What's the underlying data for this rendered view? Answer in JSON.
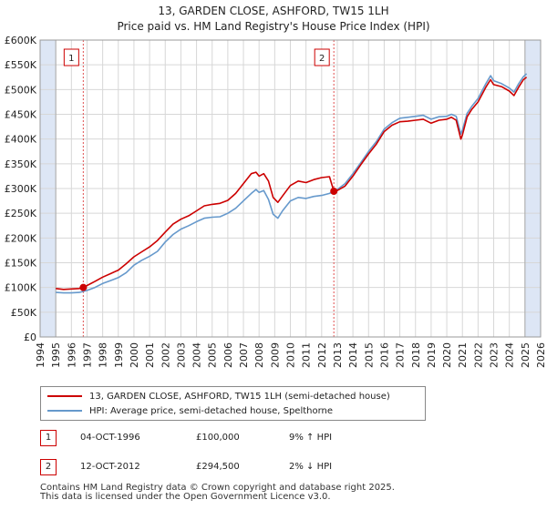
{
  "colors": {
    "property_line": "#cc0000",
    "hpi_line": "#6699cc",
    "marker_line": "#e05050",
    "shade": "#dde6f5",
    "grid": "#d7d7d7"
  },
  "chart_data": {
    "type": "line",
    "title": "13, GARDEN CLOSE, ASHFORD, TW15 1LH",
    "subtitle": "Price paid vs. HM Land Registry's House Price Index (HPI)",
    "xlim": [
      1994,
      2026
    ],
    "ylim": [
      0,
      600000
    ],
    "x_ticks": [
      "1994",
      "1995",
      "1996",
      "1997",
      "1998",
      "1999",
      "2000",
      "2001",
      "2002",
      "2003",
      "2004",
      "2005",
      "2006",
      "2007",
      "2008",
      "2009",
      "2010",
      "2011",
      "2012",
      "2013",
      "2014",
      "2015",
      "2016",
      "2017",
      "2018",
      "2019",
      "2020",
      "2021",
      "2022",
      "2023",
      "2024",
      "2025",
      "2026"
    ],
    "y_ticks": [
      {
        "value": 0,
        "label": "£0"
      },
      {
        "value": 50000,
        "label": "£50K"
      },
      {
        "value": 100000,
        "label": "£100K"
      },
      {
        "value": 150000,
        "label": "£150K"
      },
      {
        "value": 200000,
        "label": "£200K"
      },
      {
        "value": 250000,
        "label": "£250K"
      },
      {
        "value": 300000,
        "label": "£300K"
      },
      {
        "value": 350000,
        "label": "£350K"
      },
      {
        "value": 400000,
        "label": "£400K"
      },
      {
        "value": 450000,
        "label": "£450K"
      },
      {
        "value": 500000,
        "label": "£500K"
      },
      {
        "value": 550000,
        "label": "£550K"
      },
      {
        "value": 600000,
        "label": "£600K"
      }
    ],
    "shaded_regions": [
      [
        1994,
        1995
      ],
      [
        2025,
        2026
      ]
    ],
    "series": [
      {
        "name": "13, GARDEN CLOSE, ASHFORD, TW15 1LH (semi-detached house)",
        "color": "#cc0000",
        "points": [
          [
            1995.0,
            98000
          ],
          [
            1995.5,
            96000
          ],
          [
            1996.0,
            97000
          ],
          [
            1996.5,
            98000
          ],
          [
            1996.76,
            100000
          ],
          [
            1997.0,
            104000
          ],
          [
            1997.5,
            112000
          ],
          [
            1998.0,
            121000
          ],
          [
            1998.5,
            128000
          ],
          [
            1999.0,
            135000
          ],
          [
            1999.5,
            148000
          ],
          [
            2000.0,
            162000
          ],
          [
            2000.5,
            172000
          ],
          [
            2001.0,
            182000
          ],
          [
            2001.5,
            195000
          ],
          [
            2002.0,
            212000
          ],
          [
            2002.5,
            228000
          ],
          [
            2003.0,
            238000
          ],
          [
            2003.5,
            245000
          ],
          [
            2004.0,
            255000
          ],
          [
            2004.5,
            265000
          ],
          [
            2005.0,
            268000
          ],
          [
            2005.5,
            270000
          ],
          [
            2006.0,
            276000
          ],
          [
            2006.5,
            290000
          ],
          [
            2007.0,
            310000
          ],
          [
            2007.5,
            330000
          ],
          [
            2007.8,
            333000
          ],
          [
            2008.0,
            325000
          ],
          [
            2008.3,
            330000
          ],
          [
            2008.6,
            315000
          ],
          [
            2008.9,
            282000
          ],
          [
            2009.2,
            272000
          ],
          [
            2009.5,
            285000
          ],
          [
            2010.0,
            306000
          ],
          [
            2010.5,
            315000
          ],
          [
            2011.0,
            312000
          ],
          [
            2011.5,
            318000
          ],
          [
            2012.0,
            322000
          ],
          [
            2012.5,
            324000
          ],
          [
            2012.78,
            294500
          ],
          [
            2013.0,
            296000
          ],
          [
            2013.5,
            305000
          ],
          [
            2014.0,
            325000
          ],
          [
            2014.5,
            348000
          ],
          [
            2015.0,
            370000
          ],
          [
            2015.5,
            390000
          ],
          [
            2016.0,
            415000
          ],
          [
            2016.5,
            428000
          ],
          [
            2017.0,
            435000
          ],
          [
            2017.5,
            436000
          ],
          [
            2018.0,
            438000
          ],
          [
            2018.5,
            440000
          ],
          [
            2019.0,
            432000
          ],
          [
            2019.5,
            438000
          ],
          [
            2020.0,
            440000
          ],
          [
            2020.3,
            444000
          ],
          [
            2020.6,
            438000
          ],
          [
            2020.9,
            400000
          ],
          [
            2021.0,
            408000
          ],
          [
            2021.3,
            445000
          ],
          [
            2021.6,
            460000
          ],
          [
            2022.0,
            475000
          ],
          [
            2022.5,
            505000
          ],
          [
            2022.8,
            520000
          ],
          [
            2023.0,
            510000
          ],
          [
            2023.5,
            506000
          ],
          [
            2024.0,
            497000
          ],
          [
            2024.3,
            488000
          ],
          [
            2024.6,
            505000
          ],
          [
            2024.9,
            520000
          ],
          [
            2025.1,
            525000
          ]
        ]
      },
      {
        "name": "HPI: Average price, semi-detached house, Spelthorne",
        "color": "#6699cc",
        "points": [
          [
            1995.0,
            90000
          ],
          [
            1995.5,
            89000
          ],
          [
            1996.0,
            89000
          ],
          [
            1996.5,
            90000
          ],
          [
            1997.0,
            94000
          ],
          [
            1997.5,
            100000
          ],
          [
            1998.0,
            108000
          ],
          [
            1998.5,
            114000
          ],
          [
            1999.0,
            120000
          ],
          [
            1999.5,
            130000
          ],
          [
            2000.0,
            145000
          ],
          [
            2000.5,
            155000
          ],
          [
            2001.0,
            163000
          ],
          [
            2001.5,
            173000
          ],
          [
            2002.0,
            192000
          ],
          [
            2002.5,
            207000
          ],
          [
            2003.0,
            218000
          ],
          [
            2003.5,
            225000
          ],
          [
            2004.0,
            233000
          ],
          [
            2004.5,
            240000
          ],
          [
            2005.0,
            242000
          ],
          [
            2005.5,
            243000
          ],
          [
            2006.0,
            250000
          ],
          [
            2006.5,
            260000
          ],
          [
            2007.0,
            275000
          ],
          [
            2007.5,
            290000
          ],
          [
            2007.8,
            298000
          ],
          [
            2008.0,
            292000
          ],
          [
            2008.3,
            296000
          ],
          [
            2008.6,
            278000
          ],
          [
            2008.9,
            248000
          ],
          [
            2009.2,
            240000
          ],
          [
            2009.5,
            255000
          ],
          [
            2010.0,
            275000
          ],
          [
            2010.5,
            282000
          ],
          [
            2011.0,
            280000
          ],
          [
            2011.5,
            284000
          ],
          [
            2012.0,
            286000
          ],
          [
            2012.5,
            290000
          ],
          [
            2013.0,
            298000
          ],
          [
            2013.5,
            310000
          ],
          [
            2014.0,
            330000
          ],
          [
            2014.5,
            352000
          ],
          [
            2015.0,
            375000
          ],
          [
            2015.5,
            395000
          ],
          [
            2016.0,
            420000
          ],
          [
            2016.5,
            433000
          ],
          [
            2017.0,
            442000
          ],
          [
            2017.5,
            444000
          ],
          [
            2018.0,
            446000
          ],
          [
            2018.5,
            448000
          ],
          [
            2019.0,
            440000
          ],
          [
            2019.5,
            445000
          ],
          [
            2020.0,
            446000
          ],
          [
            2020.3,
            450000
          ],
          [
            2020.6,
            446000
          ],
          [
            2020.9,
            410000
          ],
          [
            2021.0,
            418000
          ],
          [
            2021.3,
            452000
          ],
          [
            2021.6,
            466000
          ],
          [
            2022.0,
            482000
          ],
          [
            2022.5,
            512000
          ],
          [
            2022.8,
            528000
          ],
          [
            2023.0,
            518000
          ],
          [
            2023.5,
            512000
          ],
          [
            2024.0,
            503000
          ],
          [
            2024.3,
            495000
          ],
          [
            2024.6,
            512000
          ],
          [
            2024.9,
            526000
          ],
          [
            2025.1,
            532000
          ]
        ]
      }
    ],
    "transactions": [
      {
        "label": "1",
        "x": 1996.76,
        "y": 100000
      },
      {
        "label": "2",
        "x": 2012.78,
        "y": 294500
      }
    ]
  },
  "legend": [
    {
      "label": "13, GARDEN CLOSE, ASHFORD, TW15 1LH (semi-detached house)",
      "color": "#cc0000"
    },
    {
      "label": "HPI: Average price, semi-detached house, Spelthorne",
      "color": "#6699cc"
    }
  ],
  "transactions_table": [
    {
      "num": "1",
      "date": "04-OCT-1996",
      "price": "£100,000",
      "hpi": "9% ↑ HPI"
    },
    {
      "num": "2",
      "date": "12-OCT-2012",
      "price": "£294,500",
      "hpi": "2% ↓ HPI"
    }
  ],
  "footer": {
    "line1": "Contains HM Land Registry data © Crown copyright and database right 2025.",
    "line2": "This data is licensed under the Open Government Licence v3.0."
  }
}
